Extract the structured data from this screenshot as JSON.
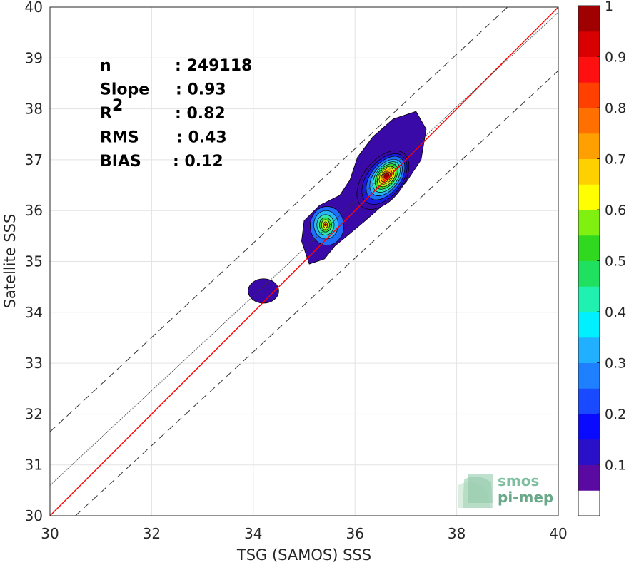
{
  "chart_data": {
    "type": "density-contour-scatter",
    "xlabel": "TSG (SAMOS) SSS",
    "ylabel": "Satellite SSS",
    "xlim": [
      30,
      40
    ],
    "ylim": [
      30,
      40
    ],
    "xticks": [
      "30",
      "32",
      "34",
      "36",
      "38",
      "40"
    ],
    "yticks": [
      "30",
      "31",
      "32",
      "33",
      "34",
      "35",
      "36",
      "37",
      "38",
      "39",
      "40"
    ],
    "grid": true,
    "stats": [
      {
        "label": "n",
        "value": ": 249118"
      },
      {
        "label": "Slope",
        "value": ": 0.93"
      },
      {
        "label": "R",
        "sup": "2",
        "value": ": 0.82"
      },
      {
        "label": "RMS",
        "value": ": 0.43"
      },
      {
        "label": "BIAS",
        "value": ": 0.12"
      }
    ],
    "lines": [
      {
        "kind": "identity",
        "color": "#ff0000",
        "from": [
          30,
          30
        ],
        "to": [
          40,
          40
        ]
      },
      {
        "kind": "regression",
        "color": "#333333",
        "from": [
          30,
          30.6
        ],
        "to": [
          40,
          39.9
        ]
      },
      {
        "kind": "upper-bound",
        "color": "#333333",
        "dashed": true,
        "from": [
          30,
          31.65
        ],
        "to": [
          39,
          40
        ]
      },
      {
        "kind": "lower-bound",
        "color": "#333333",
        "dashed": true,
        "from": [
          30.5,
          30
        ],
        "to": [
          40,
          38.75
        ]
      }
    ],
    "density": {
      "outer_contour": [
        [
          35.05,
          35.1
        ],
        [
          34.95,
          35.4
        ],
        [
          35.0,
          35.8
        ],
        [
          35.3,
          36.1
        ],
        [
          35.7,
          36.3
        ],
        [
          35.9,
          36.6
        ],
        [
          36.05,
          37.05
        ],
        [
          36.35,
          37.45
        ],
        [
          36.75,
          37.8
        ],
        [
          37.2,
          37.95
        ],
        [
          37.4,
          37.6
        ],
        [
          37.3,
          37.0
        ],
        [
          37.0,
          36.55
        ],
        [
          36.6,
          36.15
        ],
        [
          36.2,
          35.8
        ],
        [
          35.9,
          35.55
        ],
        [
          35.6,
          35.3
        ],
        [
          35.4,
          35.05
        ],
        [
          35.1,
          34.95
        ]
      ],
      "small_cluster": {
        "cx": 34.2,
        "cy": 34.42,
        "rx": 0.3,
        "ry": 0.24
      },
      "peaks": [
        {
          "x": 36.62,
          "y": 36.68,
          "value": 1.0
        },
        {
          "x": 35.42,
          "y": 35.72,
          "value": 0.65
        }
      ],
      "levels": [
        {
          "color": "#3a0aa8",
          "rx": 0.58,
          "ry": 0.54,
          "cx": 36.55,
          "cy": 36.6
        },
        {
          "color": "#1a1ae0",
          "rx": 0.5,
          "ry": 0.47,
          "cx": 36.58,
          "cy": 36.62
        },
        {
          "color": "#1f6fff",
          "rx": 0.43,
          "ry": 0.4,
          "cx": 36.6,
          "cy": 36.64
        },
        {
          "color": "#29b6f6",
          "rx": 0.36,
          "ry": 0.34,
          "cx": 36.61,
          "cy": 36.65
        },
        {
          "color": "#33e8a8",
          "rx": 0.3,
          "ry": 0.29,
          "cx": 36.62,
          "cy": 36.66
        },
        {
          "color": "#3ad83a",
          "rx": 0.25,
          "ry": 0.24,
          "cx": 36.62,
          "cy": 36.67
        },
        {
          "color": "#b8f020",
          "rx": 0.2,
          "ry": 0.2,
          "cx": 36.62,
          "cy": 36.67
        },
        {
          "color": "#ffe600",
          "rx": 0.16,
          "ry": 0.16,
          "cx": 36.62,
          "cy": 36.68
        },
        {
          "color": "#ffa500",
          "rx": 0.12,
          "ry": 0.12,
          "cx": 36.62,
          "cy": 36.68
        },
        {
          "color": "#ff5a10",
          "rx": 0.08,
          "ry": 0.09,
          "cx": 36.62,
          "cy": 36.68
        },
        {
          "color": "#cc0000",
          "rx": 0.05,
          "ry": 0.06,
          "cx": 36.62,
          "cy": 36.68
        }
      ],
      "peak2_levels": [
        {
          "color": "#1f6fff",
          "rx": 0.33,
          "ry": 0.38,
          "cx": 35.45,
          "cy": 35.7
        },
        {
          "color": "#29b6f6",
          "rx": 0.24,
          "ry": 0.28,
          "cx": 35.43,
          "cy": 35.72
        },
        {
          "color": "#33e8a8",
          "rx": 0.17,
          "ry": 0.2,
          "cx": 35.42,
          "cy": 35.72
        },
        {
          "color": "#3ad83a",
          "rx": 0.12,
          "ry": 0.14,
          "cx": 35.42,
          "cy": 35.72
        },
        {
          "color": "#b8f020",
          "rx": 0.08,
          "ry": 0.1,
          "cx": 35.42,
          "cy": 35.72
        },
        {
          "color": "#ffe600",
          "rx": 0.04,
          "ry": 0.06,
          "cx": 35.42,
          "cy": 35.72
        }
      ]
    },
    "colorbar": {
      "ticks": [
        "0.1",
        "0.2",
        "0.3",
        "0.4",
        "0.5",
        "0.6",
        "0.7",
        "0.8",
        "0.9",
        "1"
      ],
      "colors": [
        "#ffffff",
        "#5a0aa0",
        "#2a10c8",
        "#0a0aff",
        "#1a4aff",
        "#1f80ff",
        "#20b0ff",
        "#00f0ff",
        "#20f0b0",
        "#20e060",
        "#30d820",
        "#80f010",
        "#ffff00",
        "#ffd000",
        "#ffa000",
        "#ff7000",
        "#ff4000",
        "#ff1010",
        "#d80000",
        "#a00000"
      ],
      "range": [
        0.05,
        1
      ]
    },
    "watermark": {
      "line1": "smos",
      "line2": "pi-mep"
    }
  }
}
